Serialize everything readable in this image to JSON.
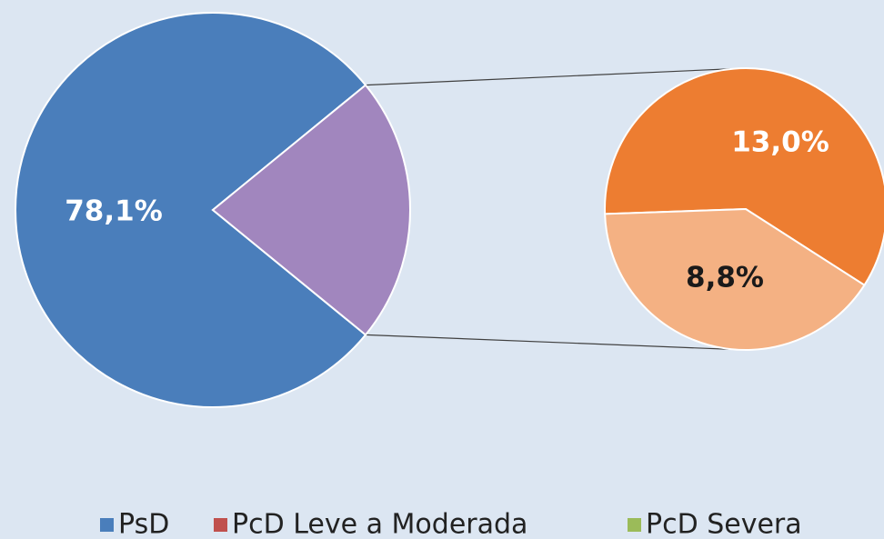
{
  "chart_data": {
    "type": "pie-of-pie",
    "categories": [
      "PsD",
      "PcD Leve a Moderada",
      "PcD Severa"
    ],
    "values": [
      78.1,
      13.0,
      8.8
    ],
    "value_labels": [
      "78,1%",
      "13,0%",
      "8,8%"
    ],
    "legend_colors": [
      "#4a7ebb",
      "#c0504d",
      "#9bbb59"
    ],
    "slice_colors": [
      "#4a7ebb",
      "#ed7d31",
      "#f4b183"
    ],
    "other_color": "#a186be"
  }
}
